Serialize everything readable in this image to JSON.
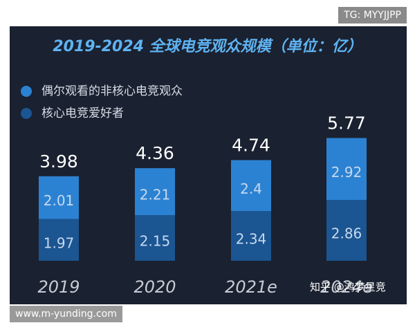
{
  "chart_data": {
    "type": "stacked_bar",
    "title": "2019-2024 全球电竞观众规模（单位：亿）",
    "categories": [
      "2019",
      "2020",
      "2021e",
      "2024e"
    ],
    "series": [
      {
        "name": "偶尔观看的非核心电竞观众",
        "color": "#2c82d2",
        "values": [
          2.01,
          2.21,
          2.4,
          2.92
        ]
      },
      {
        "name": "核心电竞爱好者",
        "color": "#1b5592",
        "values": [
          1.97,
          2.15,
          2.34,
          2.86
        ]
      }
    ],
    "totals": [
      3.98,
      4.36,
      4.74,
      5.77
    ]
  },
  "watermarks": [
    "TG: MYYJJPP",
    "www.m-yunding.com",
    "知乎 @鸿梦星竞"
  ]
}
